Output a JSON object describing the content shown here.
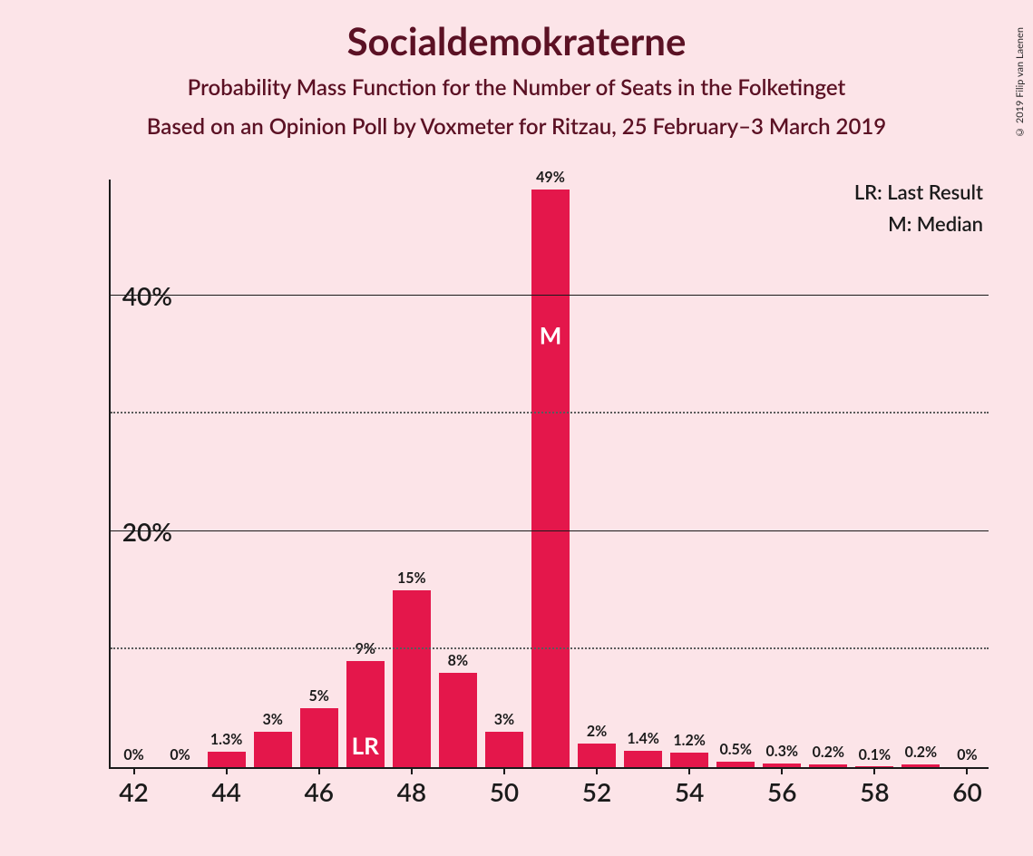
{
  "copyright": "© 2019 Filip van Laenen",
  "title": "Socialdemokraterne",
  "subtitle1": "Probability Mass Function for the Number of Seats in the Folketinget",
  "subtitle2": "Based on an Opinion Poll by Voxmeter for Ritzau, 25 February–3 March 2019",
  "legend": {
    "lr": "LR: Last Result",
    "m": "M: Median"
  },
  "chart": {
    "type": "bar",
    "background_color": "#fce4e8",
    "bar_color": "#e4174b",
    "text_color": "#1a1a1a",
    "heading_color": "#5b1124",
    "bar_inside_color": "#ffffff",
    "ylim": [
      0,
      50
    ],
    "ytick_major": [
      20,
      40
    ],
    "ytick_minor": [
      10,
      30
    ],
    "ytick_labels": {
      "20": "20%",
      "40": "40%"
    },
    "xtick_labels": [
      42,
      44,
      46,
      48,
      50,
      52,
      54,
      56,
      58,
      60
    ],
    "bar_width_ratio": 0.82,
    "bars": [
      {
        "x": 42,
        "v": 0,
        "label": "0%"
      },
      {
        "x": 43,
        "v": 0,
        "label": "0%"
      },
      {
        "x": 44,
        "v": 1.3,
        "label": "1.3%"
      },
      {
        "x": 45,
        "v": 3,
        "label": "3%"
      },
      {
        "x": 46,
        "v": 5,
        "label": "5%"
      },
      {
        "x": 47,
        "v": 9,
        "label": "9%",
        "inside": "LR"
      },
      {
        "x": 48,
        "v": 15,
        "label": "15%"
      },
      {
        "x": 49,
        "v": 8,
        "label": "8%"
      },
      {
        "x": 50,
        "v": 3,
        "label": "3%"
      },
      {
        "x": 51,
        "v": 49,
        "label": "49%",
        "inside": "M"
      },
      {
        "x": 52,
        "v": 2,
        "label": "2%"
      },
      {
        "x": 53,
        "v": 1.4,
        "label": "1.4%"
      },
      {
        "x": 54,
        "v": 1.2,
        "label": "1.2%"
      },
      {
        "x": 55,
        "v": 0.5,
        "label": "0.5%"
      },
      {
        "x": 56,
        "v": 0.3,
        "label": "0.3%"
      },
      {
        "x": 57,
        "v": 0.2,
        "label": "0.2%"
      },
      {
        "x": 58,
        "v": 0.1,
        "label": "0.1%"
      },
      {
        "x": 59,
        "v": 0.2,
        "label": "0.2%"
      },
      {
        "x": 60,
        "v": 0,
        "label": "0%"
      }
    ]
  }
}
